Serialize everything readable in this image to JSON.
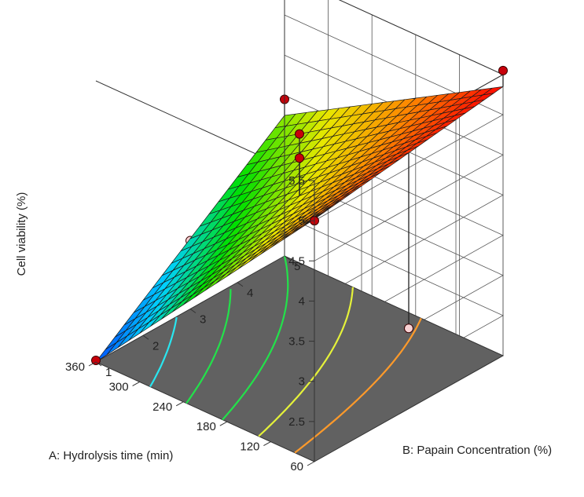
{
  "chart_data": {
    "type": "surface3d",
    "zlabel": "Cell viability (%)",
    "xlabel": "A: Hydrolysis time  (min)",
    "ylabel": "B: Papain Concentration (%)",
    "x_ticks": [
      "60",
      "120",
      "180",
      "240",
      "300",
      "360"
    ],
    "y_ticks": [
      "1",
      "2",
      "3",
      "4",
      "5"
    ],
    "z_ticks": [
      "2.5",
      "3",
      "3.5",
      "4",
      "4.5",
      "5",
      "5.5"
    ],
    "xlim": [
      60,
      360
    ],
    "ylim": [
      1,
      5
    ],
    "zlim": [
      2,
      5.5
    ],
    "surface_corners": [
      {
        "x": 60,
        "y": 1,
        "z": 5.02
      },
      {
        "x": 60,
        "y": 5,
        "z": 5.35
      },
      {
        "x": 360,
        "y": 5,
        "z": 3.75
      },
      {
        "x": 360,
        "y": 1,
        "z": 2.0
      }
    ],
    "design_points": [
      {
        "x": 60,
        "y": 1,
        "z": 5.0,
        "above_surface": true
      },
      {
        "x": 60,
        "y": 5,
        "z": 5.55,
        "above_surface": true
      },
      {
        "x": 210,
        "y": 3,
        "z": 4.8,
        "above_surface": true
      },
      {
        "x": 210,
        "y": 3,
        "z": 4.5,
        "above_surface": true
      },
      {
        "x": 360,
        "y": 5,
        "z": 3.95,
        "above_surface": true
      },
      {
        "x": 360,
        "y": 1,
        "z": 2.02,
        "above_surface": true
      },
      {
        "x": 60,
        "y": 3,
        "z": 3.0,
        "above_surface": false
      },
      {
        "x": 360,
        "y": 3,
        "z": 2.85,
        "above_surface": false
      }
    ],
    "contour_levels": [
      "orange",
      "yellow",
      "green",
      "green",
      "cyan"
    ],
    "colorscale": [
      "#0050ff",
      "#00d0ff",
      "#00e000",
      "#e8e800",
      "#ff8000",
      "#ff0000"
    ],
    "grid": true
  }
}
